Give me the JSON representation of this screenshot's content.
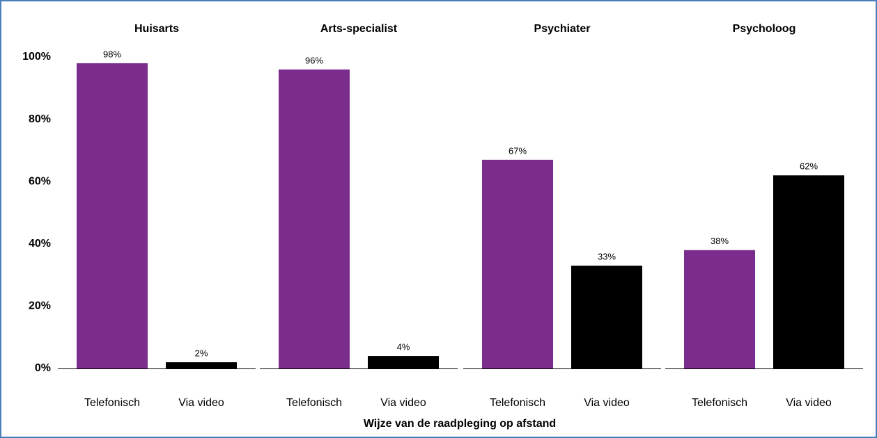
{
  "chart_data": {
    "type": "bar",
    "x_label": "Wijze van de raadpleging op afstand",
    "ylim": [
      0,
      100
    ],
    "yticks": [
      {
        "value": 0,
        "label": "0%"
      },
      {
        "value": 20,
        "label": "20%"
      },
      {
        "value": 40,
        "label": "40%"
      },
      {
        "value": 60,
        "label": "60%"
      },
      {
        "value": 80,
        "label": "80%"
      },
      {
        "value": 100,
        "label": "100%"
      }
    ],
    "colors": [
      "#7b2d8e",
      "#000000"
    ],
    "panels": [
      {
        "title": "Huisarts",
        "categories": [
          "Telefonisch",
          "Via video"
        ],
        "values": [
          98,
          2
        ],
        "value_labels": [
          "98%",
          "2%"
        ]
      },
      {
        "title": "Arts-specialist",
        "categories": [
          "Telefonisch",
          "Via video"
        ],
        "values": [
          96,
          4
        ],
        "value_labels": [
          "96%",
          "4%"
        ]
      },
      {
        "title": "Psychiater",
        "categories": [
          "Telefonisch",
          "Via video"
        ],
        "values": [
          67,
          33
        ],
        "value_labels": [
          "67%",
          "33%"
        ]
      },
      {
        "title": "Psycholoog",
        "categories": [
          "Telefonisch",
          "Via video"
        ],
        "values": [
          38,
          62
        ],
        "value_labels": [
          "38%",
          "62%"
        ]
      }
    ]
  }
}
